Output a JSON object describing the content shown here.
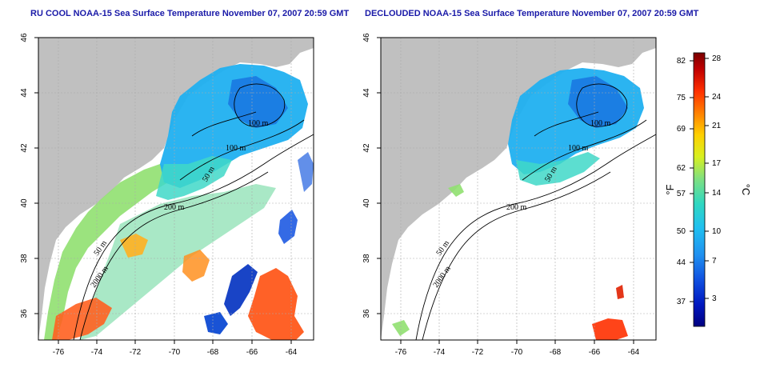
{
  "titles": {
    "left": "RU COOL NOAA-15 Sea Surface Temperature November 07, 2007 20:59 GMT",
    "right": "DECLOUDED NOAA-15 Sea Surface Temperature November 07, 2007 20:59 GMT"
  },
  "axes": {
    "lon_ticks": [
      "-76",
      "-74",
      "-72",
      "-70",
      "-68",
      "-66",
      "-64"
    ],
    "lat_ticks": [
      "36",
      "38",
      "40",
      "42",
      "44",
      "46"
    ],
    "lon_range": [
      -77.2,
      -63.0
    ],
    "lat_range": [
      35.0,
      46.0
    ]
  },
  "contours": {
    "depth_100": "100 m",
    "depth_100b": "100 m",
    "depth_200": "200 m",
    "depth_50": "50 m",
    "depth_50b": "50 m",
    "depth_2000": "2000 m"
  },
  "colorbar": {
    "fahrenheit_ticks": [
      "82",
      "75",
      "69",
      "62",
      "57",
      "50",
      "44",
      "37"
    ],
    "celsius_ticks": [
      "28",
      "24",
      "21",
      "17",
      "14",
      "10",
      "7",
      "3"
    ],
    "unit_f": "°F",
    "unit_c": "°C",
    "colors": [
      "#7a0000",
      "#c00000",
      "#ff3000",
      "#ff8000",
      "#ffd000",
      "#d8f020",
      "#80e080",
      "#30d8c0",
      "#20c0f0",
      "#2090f0",
      "#1050e0",
      "#0018c0",
      "#000080"
    ]
  },
  "map_colors": {
    "land": "#c0c0c0",
    "cloud": "#ffffff",
    "contour": "#000000",
    "grid": "#aaaaaa"
  }
}
